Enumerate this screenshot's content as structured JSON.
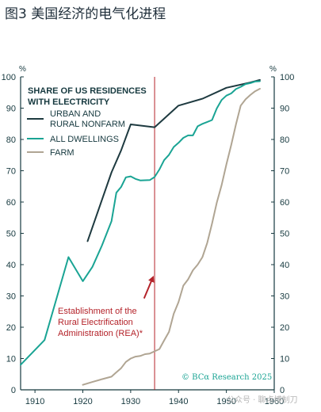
{
  "page": {
    "title": "图3 美国经济的电气化进程",
    "watermark": "公众号 · 聊点博制刀"
  },
  "chart_data": {
    "type": "line",
    "title": "SHARE OF US RESIDENCES WITH ELECTRICITY",
    "left_unit": "%",
    "right_unit": "%",
    "xlim": [
      1907,
      1960
    ],
    "ylim": [
      0,
      100
    ],
    "x_ticks": [
      1910,
      1920,
      1930,
      1940,
      1950,
      1960
    ],
    "y_ticks": [
      0,
      10,
      20,
      30,
      40,
      50,
      60,
      70,
      80,
      90,
      100
    ],
    "grid": false,
    "legend_placement": "top-left",
    "colors": {
      "axis": "#16393f",
      "urban": "#1e3a40",
      "all": "#1aa494",
      "farm": "#b0a593",
      "rea": "#b4232a",
      "credit": "#1aa494"
    },
    "series": [
      {
        "name": "URBAN AND RURAL NONFARM",
        "color_key": "urban",
        "x": [
          1921,
          1926,
          1928,
          1930,
          1935,
          1940,
          1945,
          1950,
          1955,
          1957
        ],
        "y": [
          47.5,
          69.5,
          76.5,
          84.8,
          83.9,
          90.8,
          93.0,
          96.5,
          98.2,
          99.0
        ]
      },
      {
        "name": "ALL DWELLINGS",
        "color_key": "all",
        "x": [
          1907,
          1912,
          1917,
          1920,
          1922,
          1924,
          1926,
          1927,
          1928,
          1929,
          1930,
          1931,
          1932,
          1934,
          1935,
          1936,
          1937,
          1938,
          1939,
          1940,
          1941,
          1942,
          1943,
          1944,
          1945,
          1946,
          1947,
          1948,
          1949,
          1950,
          1951,
          1952,
          1953,
          1954,
          1955,
          1956,
          1957
        ],
        "y": [
          8.0,
          15.9,
          42.4,
          34.7,
          39.3,
          46.1,
          53.9,
          63.0,
          64.8,
          67.9,
          68.2,
          67.4,
          66.9,
          67.0,
          68.0,
          70.4,
          73.4,
          75.1,
          77.6,
          78.9,
          80.5,
          81.3,
          81.3,
          84.2,
          85.0,
          85.6,
          86.2,
          89.9,
          92.6,
          94.0,
          94.7,
          96.1,
          96.8,
          97.7,
          98.0,
          98.5,
          98.6
        ]
      },
      {
        "name": "FARM",
        "color_key": "farm",
        "x": [
          1920,
          1922,
          1924,
          1926,
          1927,
          1928,
          1929,
          1930,
          1931,
          1932,
          1933,
          1934,
          1935,
          1936,
          1937,
          1938,
          1939,
          1940,
          1941,
          1942,
          1943,
          1944,
          1945,
          1946,
          1947,
          1948,
          1949,
          1950,
          1951,
          1952,
          1953,
          1954,
          1955,
          1956,
          1957
        ],
        "y": [
          1.6,
          2.5,
          3.4,
          4.2,
          5.6,
          6.9,
          8.9,
          10.0,
          10.6,
          10.8,
          11.4,
          11.6,
          12.3,
          13.0,
          15.8,
          18.5,
          24.3,
          28.0,
          33.3,
          35.3,
          38.2,
          40.0,
          42.4,
          47.0,
          53.1,
          59.8,
          65.4,
          72.0,
          78.2,
          84.8,
          90.8,
          92.8,
          94.2,
          95.4,
          96.2
        ]
      }
    ],
    "rea_line_x": 1935,
    "annotation": {
      "lines": [
        "Establishment of the",
        "Rural Electrification",
        "Administration (REA)*"
      ],
      "arrow_from": [
        1932.8,
        29.2
      ],
      "arrow_to": [
        1935.0,
        36.0
      ]
    },
    "credit": "© BCα Research 2025"
  }
}
